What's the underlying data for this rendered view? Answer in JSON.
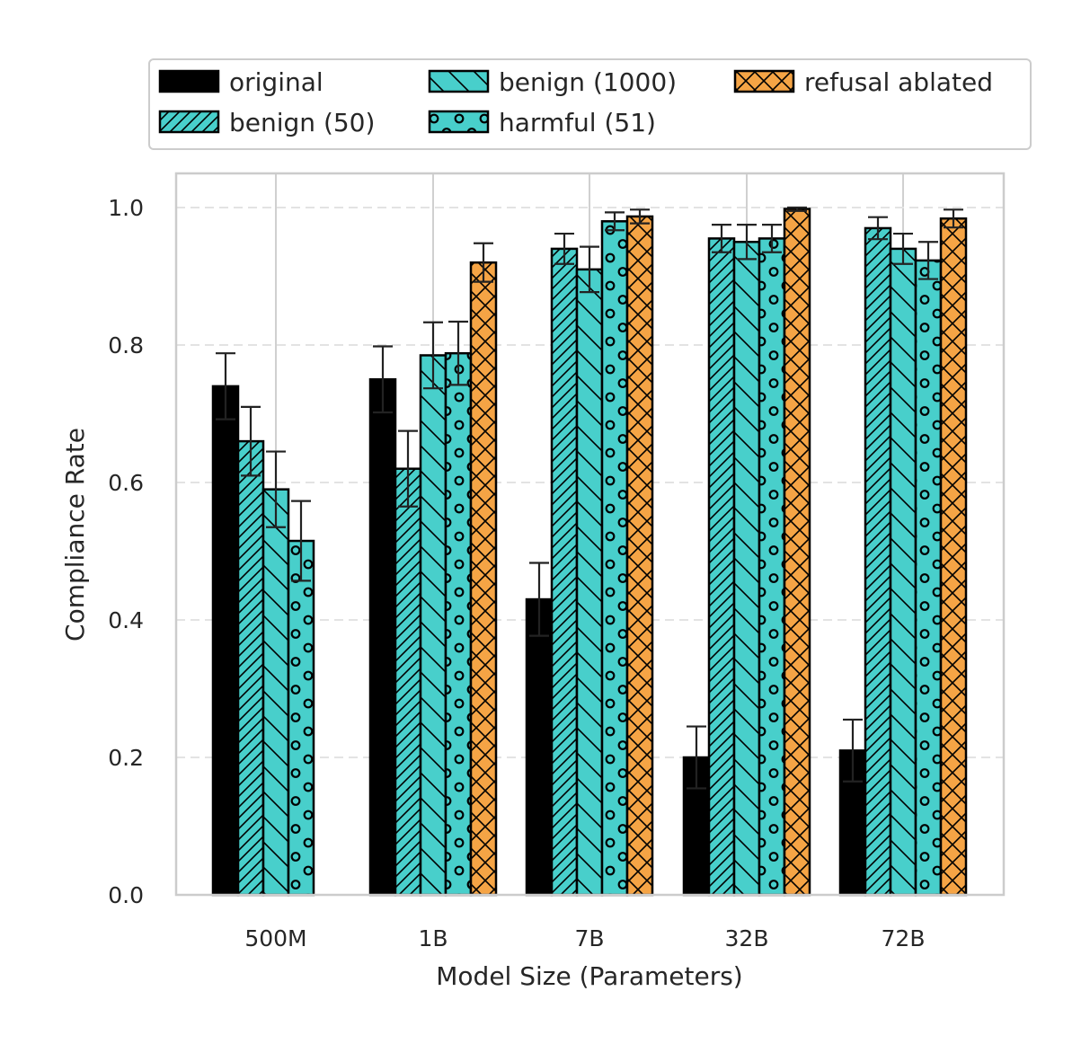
{
  "chart_data": {
    "type": "bar",
    "title": "",
    "xlabel": "Model Size (Parameters)",
    "ylabel": "Compliance Rate",
    "ylim": [
      0,
      1.0
    ],
    "yticks": [
      "0.0",
      "0.2",
      "0.4",
      "0.6",
      "0.8",
      "1.0"
    ],
    "grid": true,
    "legend_position": "top",
    "categories": [
      "500M",
      "1B",
      "7B",
      "32B",
      "72B"
    ],
    "series": [
      {
        "name": "original",
        "color": "#000000",
        "hatch": "none",
        "values": [
          0.74,
          0.75,
          0.43,
          0.2,
          0.21
        ],
        "errors": [
          0.048,
          0.048,
          0.053,
          0.045,
          0.045
        ]
      },
      {
        "name": "benign (50)",
        "color": "#48CFCB",
        "hatch": "diagonal",
        "values": [
          0.66,
          0.62,
          0.94,
          0.955,
          0.97
        ],
        "errors": [
          0.05,
          0.055,
          0.022,
          0.02,
          0.016
        ]
      },
      {
        "name": "benign (1000)",
        "color": "#48CFCB",
        "hatch": "backslash",
        "values": [
          0.59,
          0.785,
          0.91,
          0.95,
          0.94
        ],
        "errors": [
          0.055,
          0.048,
          0.033,
          0.025,
          0.022
        ]
      },
      {
        "name": "harmful (51)",
        "color": "#48CFCB",
        "hatch": "circles",
        "values": [
          0.515,
          0.788,
          0.98,
          0.955,
          0.923
        ],
        "errors": [
          0.058,
          0.046,
          0.013,
          0.02,
          0.027
        ]
      },
      {
        "name": "refusal ablated",
        "color": "#F5A445",
        "hatch": "cross",
        "values": [
          null,
          0.92,
          0.987,
          0.998,
          0.984
        ],
        "errors": [
          null,
          0.028,
          0.01,
          0.003,
          0.013
        ]
      }
    ]
  }
}
